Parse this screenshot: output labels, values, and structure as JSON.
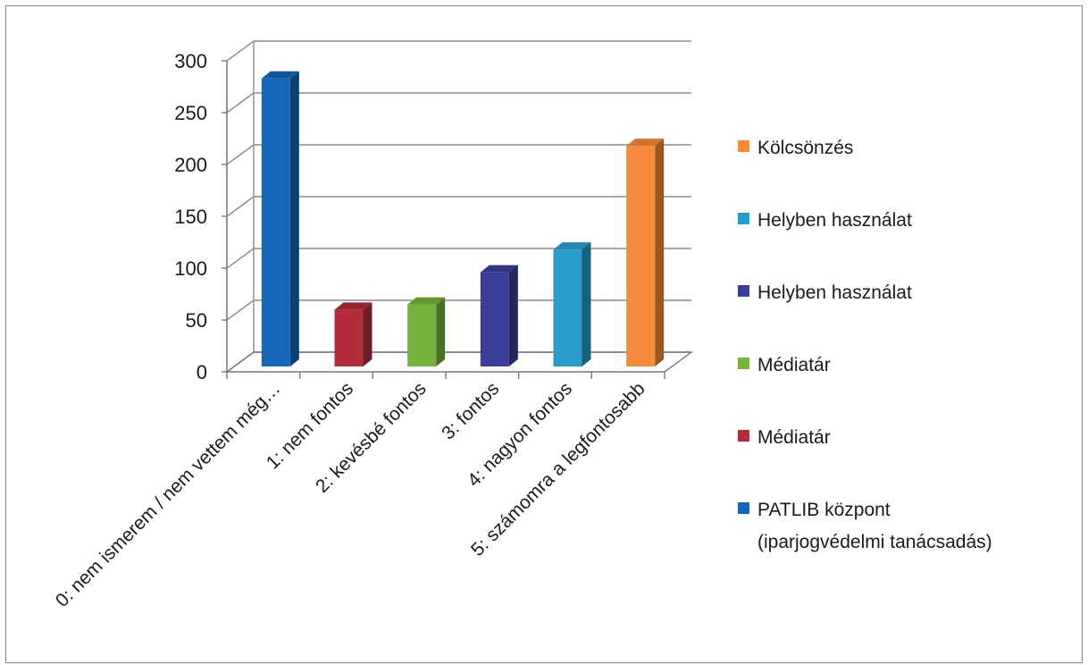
{
  "chart_data": {
    "type": "bar",
    "title": "",
    "xlabel": "",
    "ylabel": "",
    "ylim": [
      0,
      300
    ],
    "yticks": [
      0,
      50,
      100,
      150,
      200,
      250,
      300
    ],
    "grid": true,
    "three_d": true,
    "legend_position": "right",
    "categories": [
      "0: nem ismerem / nem vettem még…",
      "1: nem fontos",
      "2: kevésbé fontos",
      "3: fontos",
      "4: nagyon fontos",
      "5: számomra a legfontosabb"
    ],
    "series": [
      {
        "name": "PATLIB központ (iparjogvédelmi tanácsadás)",
        "color": "#1565b8",
        "values": [
          283,
          null,
          null,
          null,
          null,
          null
        ]
      },
      {
        "name": "Médiatár",
        "color": "#b22d3c",
        "values": [
          null,
          60,
          null,
          null,
          null,
          null
        ]
      },
      {
        "name": "Médiatár",
        "color": "#76b33c",
        "values": [
          null,
          null,
          65,
          null,
          null,
          null
        ]
      },
      {
        "name": "Helyben használat",
        "color": "#3a3e96",
        "values": [
          null,
          null,
          null,
          96,
          null,
          null
        ]
      },
      {
        "name": "Helyben használat",
        "color": "#2a9ccc",
        "values": [
          null,
          null,
          null,
          null,
          118,
          null
        ]
      },
      {
        "name": "Kölcsönzés",
        "color": "#f58a3c",
        "values": [
          null,
          null,
          null,
          null,
          null,
          218
        ]
      }
    ],
    "legend_order": [
      {
        "name": "Kölcsönzés",
        "color": "#f58a3c"
      },
      {
        "name": "Helyben használat",
        "color": "#2a9ccc"
      },
      {
        "name": "Helyben használat",
        "color": "#3a3e96"
      },
      {
        "name": "Médiatár",
        "color": "#76b33c"
      },
      {
        "name": "Médiatár",
        "color": "#b22d3c"
      },
      {
        "name": "PATLIB központ (iparjogvédelmi tanácsadás)",
        "color": "#1565b8"
      }
    ]
  }
}
